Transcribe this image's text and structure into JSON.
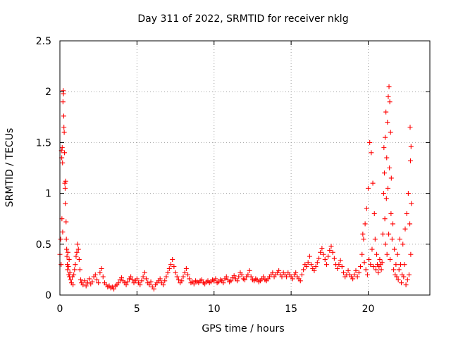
{
  "chart_data": {
    "type": "scatter",
    "title": "Day 311 of 2022, SRMTID for receiver nklg",
    "xlabel": "GPS time / hours",
    "ylabel": "SRMTID / TECUs",
    "xlim": [
      0,
      24
    ],
    "ylim": [
      0,
      2.5
    ],
    "x_ticks": [
      0,
      5,
      10,
      15,
      20
    ],
    "x_tick_labels": [
      "0",
      "5",
      "10",
      "15",
      "20"
    ],
    "y_ticks": [
      0,
      0.5,
      1,
      1.5,
      2,
      2.5
    ],
    "y_tick_labels": [
      "0",
      "0.5",
      "1",
      "1.5",
      "2",
      "2.5"
    ],
    "grid": true,
    "marker": "+",
    "series_color": "#ff0000",
    "series": [
      {
        "name": "SRMTID",
        "points": [
          [
            0.0,
            0.4
          ],
          [
            0.05,
            0.55
          ],
          [
            0.08,
            0.3
          ],
          [
            0.1,
            1.42
          ],
          [
            0.12,
            1.35
          ],
          [
            0.13,
            0.75
          ],
          [
            0.15,
            1.45
          ],
          [
            0.17,
            1.3
          ],
          [
            0.18,
            0.62
          ],
          [
            0.2,
            1.9
          ],
          [
            0.22,
            2.01
          ],
          [
            0.23,
            1.98
          ],
          [
            0.25,
            1.76
          ],
          [
            0.26,
            1.65
          ],
          [
            0.28,
            1.6
          ],
          [
            0.3,
            1.4
          ],
          [
            0.32,
            1.1
          ],
          [
            0.34,
            1.05
          ],
          [
            0.35,
            0.9
          ],
          [
            0.37,
            1.12
          ],
          [
            0.4,
            0.72
          ],
          [
            0.42,
            0.55
          ],
          [
            0.44,
            0.45
          ],
          [
            0.46,
            0.38
          ],
          [
            0.48,
            0.3
          ],
          [
            0.5,
            0.25
          ],
          [
            0.52,
            0.42
          ],
          [
            0.55,
            0.28
          ],
          [
            0.58,
            0.2
          ],
          [
            0.6,
            0.35
          ],
          [
            0.62,
            0.18
          ],
          [
            0.65,
            0.22
          ],
          [
            0.7,
            0.15
          ],
          [
            0.75,
            0.12
          ],
          [
            0.8,
            0.18
          ],
          [
            0.85,
            0.1
          ],
          [
            0.9,
            0.2
          ],
          [
            0.95,
            0.25
          ],
          [
            1.0,
            0.3
          ],
          [
            1.05,
            0.38
          ],
          [
            1.1,
            0.42
          ],
          [
            1.15,
            0.5
          ],
          [
            1.2,
            0.45
          ],
          [
            1.25,
            0.35
          ],
          [
            1.3,
            0.25
          ],
          [
            1.35,
            0.15
          ],
          [
            1.4,
            0.12
          ],
          [
            1.5,
            0.1
          ],
          [
            1.6,
            0.14
          ],
          [
            1.7,
            0.09
          ],
          [
            1.8,
            0.12
          ],
          [
            1.9,
            0.16
          ],
          [
            2.0,
            0.11
          ],
          [
            2.1,
            0.13
          ],
          [
            2.2,
            0.18
          ],
          [
            2.3,
            0.2
          ],
          [
            2.4,
            0.15
          ],
          [
            2.5,
            0.12
          ],
          [
            2.6,
            0.22
          ],
          [
            2.7,
            0.26
          ],
          [
            2.8,
            0.18
          ],
          [
            2.9,
            0.12
          ],
          [
            3.0,
            0.1
          ],
          [
            3.1,
            0.08
          ],
          [
            3.2,
            0.09
          ],
          [
            3.3,
            0.07
          ],
          [
            3.4,
            0.08
          ],
          [
            3.5,
            0.06
          ],
          [
            3.6,
            0.09
          ],
          [
            3.7,
            0.1
          ],
          [
            3.8,
            0.12
          ],
          [
            3.9,
            0.15
          ],
          [
            4.0,
            0.17
          ],
          [
            4.1,
            0.14
          ],
          [
            4.2,
            0.12
          ],
          [
            4.3,
            0.1
          ],
          [
            4.4,
            0.13
          ],
          [
            4.5,
            0.16
          ],
          [
            4.6,
            0.18
          ],
          [
            4.7,
            0.15
          ],
          [
            4.8,
            0.12
          ],
          [
            4.9,
            0.14
          ],
          [
            5.0,
            0.16
          ],
          [
            5.1,
            0.12
          ],
          [
            5.2,
            0.1
          ],
          [
            5.3,
            0.14
          ],
          [
            5.4,
            0.18
          ],
          [
            5.5,
            0.22
          ],
          [
            5.6,
            0.16
          ],
          [
            5.7,
            0.12
          ],
          [
            5.8,
            0.1
          ],
          [
            5.9,
            0.13
          ],
          [
            6.0,
            0.08
          ],
          [
            6.1,
            0.06
          ],
          [
            6.2,
            0.1
          ],
          [
            6.3,
            0.12
          ],
          [
            6.4,
            0.14
          ],
          [
            6.5,
            0.16
          ],
          [
            6.6,
            0.12
          ],
          [
            6.7,
            0.1
          ],
          [
            6.8,
            0.14
          ],
          [
            6.9,
            0.18
          ],
          [
            7.0,
            0.22
          ],
          [
            7.1,
            0.26
          ],
          [
            7.2,
            0.3
          ],
          [
            7.3,
            0.35
          ],
          [
            7.4,
            0.28
          ],
          [
            7.5,
            0.22
          ],
          [
            7.6,
            0.18
          ],
          [
            7.7,
            0.15
          ],
          [
            7.8,
            0.12
          ],
          [
            7.9,
            0.14
          ],
          [
            8.0,
            0.18
          ],
          [
            8.1,
            0.22
          ],
          [
            8.2,
            0.26
          ],
          [
            8.3,
            0.2
          ],
          [
            8.4,
            0.16
          ],
          [
            8.5,
            0.12
          ],
          [
            8.6,
            0.13
          ],
          [
            8.7,
            0.11
          ],
          [
            8.8,
            0.14
          ],
          [
            8.9,
            0.13
          ],
          [
            9.0,
            0.12
          ],
          [
            9.1,
            0.14
          ],
          [
            9.2,
            0.15
          ],
          [
            9.3,
            0.12
          ],
          [
            9.4,
            0.11
          ],
          [
            9.5,
            0.13
          ],
          [
            9.6,
            0.14
          ],
          [
            9.7,
            0.12
          ],
          [
            9.8,
            0.13
          ],
          [
            9.9,
            0.15
          ],
          [
            10.0,
            0.14
          ],
          [
            10.1,
            0.16
          ],
          [
            10.2,
            0.12
          ],
          [
            10.3,
            0.13
          ],
          [
            10.4,
            0.15
          ],
          [
            10.5,
            0.14
          ],
          [
            10.6,
            0.12
          ],
          [
            10.7,
            0.16
          ],
          [
            10.8,
            0.18
          ],
          [
            10.9,
            0.15
          ],
          [
            11.0,
            0.13
          ],
          [
            11.1,
            0.14
          ],
          [
            11.2,
            0.17
          ],
          [
            11.3,
            0.19
          ],
          [
            11.4,
            0.16
          ],
          [
            11.5,
            0.14
          ],
          [
            11.6,
            0.18
          ],
          [
            11.7,
            0.22
          ],
          [
            11.8,
            0.2
          ],
          [
            11.9,
            0.16
          ],
          [
            12.0,
            0.15
          ],
          [
            12.1,
            0.18
          ],
          [
            12.2,
            0.2
          ],
          [
            12.3,
            0.24
          ],
          [
            12.4,
            0.18
          ],
          [
            12.5,
            0.15
          ],
          [
            12.6,
            0.14
          ],
          [
            12.7,
            0.16
          ],
          [
            12.8,
            0.15
          ],
          [
            12.9,
            0.13
          ],
          [
            13.0,
            0.14
          ],
          [
            13.1,
            0.16
          ],
          [
            13.2,
            0.18
          ],
          [
            13.3,
            0.15
          ],
          [
            13.4,
            0.14
          ],
          [
            13.5,
            0.16
          ],
          [
            13.6,
            0.18
          ],
          [
            13.7,
            0.2
          ],
          [
            13.8,
            0.22
          ],
          [
            13.9,
            0.18
          ],
          [
            14.0,
            0.2
          ],
          [
            14.1,
            0.22
          ],
          [
            14.2,
            0.24
          ],
          [
            14.3,
            0.2
          ],
          [
            14.4,
            0.18
          ],
          [
            14.5,
            0.22
          ],
          [
            14.6,
            0.2
          ],
          [
            14.7,
            0.18
          ],
          [
            14.8,
            0.22
          ],
          [
            14.9,
            0.2
          ],
          [
            15.0,
            0.18
          ],
          [
            15.1,
            0.16
          ],
          [
            15.2,
            0.2
          ],
          [
            15.3,
            0.22
          ],
          [
            15.4,
            0.18
          ],
          [
            15.5,
            0.16
          ],
          [
            15.6,
            0.14
          ],
          [
            15.7,
            0.2
          ],
          [
            15.8,
            0.25
          ],
          [
            15.9,
            0.3
          ],
          [
            16.0,
            0.28
          ],
          [
            16.1,
            0.32
          ],
          [
            16.2,
            0.38
          ],
          [
            16.3,
            0.3
          ],
          [
            16.4,
            0.26
          ],
          [
            16.5,
            0.24
          ],
          [
            16.6,
            0.28
          ],
          [
            16.7,
            0.32
          ],
          [
            16.8,
            0.36
          ],
          [
            16.9,
            0.42
          ],
          [
            17.0,
            0.46
          ],
          [
            17.1,
            0.4
          ],
          [
            17.2,
            0.35
          ],
          [
            17.3,
            0.3
          ],
          [
            17.4,
            0.38
          ],
          [
            17.5,
            0.44
          ],
          [
            17.6,
            0.48
          ],
          [
            17.7,
            0.42
          ],
          [
            17.8,
            0.36
          ],
          [
            17.9,
            0.3
          ],
          [
            18.0,
            0.26
          ],
          [
            18.1,
            0.3
          ],
          [
            18.2,
            0.34
          ],
          [
            18.3,
            0.28
          ],
          [
            18.4,
            0.22
          ],
          [
            18.5,
            0.18
          ],
          [
            18.6,
            0.2
          ],
          [
            18.7,
            0.24
          ],
          [
            18.8,
            0.2
          ],
          [
            18.9,
            0.18
          ],
          [
            19.0,
            0.16
          ],
          [
            19.1,
            0.2
          ],
          [
            19.2,
            0.24
          ],
          [
            19.3,
            0.18
          ],
          [
            19.4,
            0.22
          ],
          [
            19.5,
            0.28
          ],
          [
            19.6,
            0.4
          ],
          [
            19.65,
            0.6
          ],
          [
            19.7,
            0.55
          ],
          [
            19.75,
            0.32
          ],
          [
            19.8,
            0.7
          ],
          [
            19.85,
            0.25
          ],
          [
            19.9,
            0.85
          ],
          [
            19.95,
            0.2
          ],
          [
            20.0,
            1.05
          ],
          [
            20.05,
            0.35
          ],
          [
            20.1,
            1.5
          ],
          [
            20.15,
            0.3
          ],
          [
            20.2,
            1.4
          ],
          [
            20.25,
            0.45
          ],
          [
            20.3,
            1.1
          ],
          [
            20.35,
            0.28
          ],
          [
            20.4,
            0.8
          ],
          [
            20.45,
            0.55
          ],
          [
            20.5,
            0.25
          ],
          [
            20.55,
            0.4
          ],
          [
            20.6,
            0.3
          ],
          [
            20.65,
            0.22
          ],
          [
            20.7,
            0.28
          ],
          [
            20.75,
            0.35
          ],
          [
            20.8,
            0.3
          ],
          [
            20.85,
            0.25
          ],
          [
            20.9,
            0.32
          ],
          [
            20.95,
            0.6
          ],
          [
            21.0,
            1.0
          ],
          [
            21.02,
            1.45
          ],
          [
            21.05,
            1.2
          ],
          [
            21.08,
            0.75
          ],
          [
            21.1,
            1.55
          ],
          [
            21.12,
            0.5
          ],
          [
            21.15,
            1.8
          ],
          [
            21.18,
            0.95
          ],
          [
            21.2,
            1.35
          ],
          [
            21.22,
            0.4
          ],
          [
            21.25,
            1.7
          ],
          [
            21.28,
            1.05
          ],
          [
            21.3,
            1.95
          ],
          [
            21.33,
            0.6
          ],
          [
            21.35,
            2.05
          ],
          [
            21.38,
            1.25
          ],
          [
            21.4,
            1.9
          ],
          [
            21.42,
            0.35
          ],
          [
            21.45,
            1.6
          ],
          [
            21.48,
            0.8
          ],
          [
            21.5,
            1.15
          ],
          [
            21.55,
            0.55
          ],
          [
            21.6,
            0.7
          ],
          [
            21.65,
            0.25
          ],
          [
            21.7,
            0.45
          ],
          [
            21.75,
            0.2
          ],
          [
            21.8,
            0.3
          ],
          [
            21.85,
            0.18
          ],
          [
            21.9,
            0.4
          ],
          [
            21.95,
            0.15
          ],
          [
            22.0,
            0.25
          ],
          [
            22.05,
            0.55
          ],
          [
            22.1,
            0.3
          ],
          [
            22.15,
            0.12
          ],
          [
            22.2,
            0.2
          ],
          [
            22.25,
            0.5
          ],
          [
            22.3,
            0.18
          ],
          [
            22.35,
            0.3
          ],
          [
            22.4,
            0.65
          ],
          [
            22.45,
            0.1
          ],
          [
            22.5,
            0.8
          ],
          [
            22.55,
            0.15
          ],
          [
            22.6,
            1.0
          ],
          [
            22.65,
            0.2
          ],
          [
            22.7,
            0.7
          ],
          [
            22.72,
            1.65
          ],
          [
            22.74,
            1.32
          ],
          [
            22.76,
            0.4
          ],
          [
            22.78,
            1.46
          ],
          [
            22.8,
            0.9
          ]
        ]
      }
    ]
  }
}
